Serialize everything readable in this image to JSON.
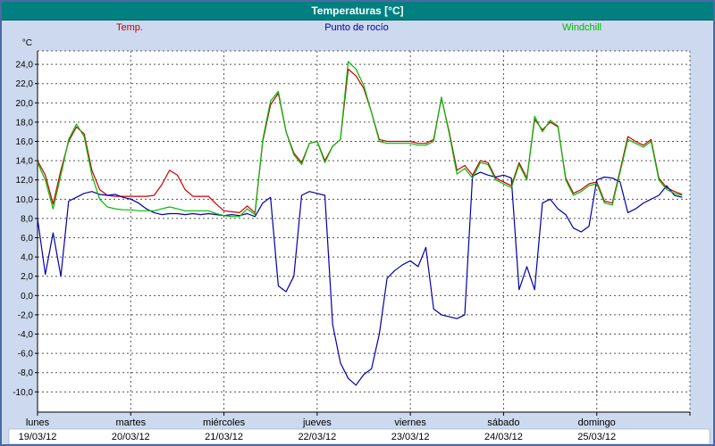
{
  "window": {
    "title": "Temperaturas [°C]"
  },
  "chart_data": {
    "type": "line",
    "title": "Temperaturas [°C]",
    "ylabel": "°C",
    "ylim": [
      -12.1,
      25.4
    ],
    "y_tick_step": 2,
    "y_ticks": [
      "24,0",
      "22,0",
      "20,0",
      "18,0",
      "16,0",
      "14,0",
      "12,0",
      "10,0",
      "8,0",
      "6,0",
      "4,0",
      "2,0",
      "0,0",
      "-2,0",
      "-4,0",
      "-6,0",
      "-8,0",
      "-10,0"
    ],
    "grid": "dashed",
    "legend_position": "top",
    "hours_per_point": 2,
    "total_hours": 168,
    "x_days": [
      {
        "name": "lunes",
        "date": "19/03/12"
      },
      {
        "name": "martes",
        "date": "20/03/12"
      },
      {
        "name": "miércoles",
        "date": "21/03/12"
      },
      {
        "name": "jueves",
        "date": "22/03/12"
      },
      {
        "name": "viernes",
        "date": "23/03/12"
      },
      {
        "name": "sábado",
        "date": "24/03/12"
      },
      {
        "name": "domingo",
        "date": "25/03/12"
      }
    ],
    "series": [
      {
        "name": "Temp.",
        "color": "#cc0000",
        "values": [
          14.0,
          12.5,
          9.5,
          13.0,
          16.0,
          17.5,
          16.8,
          13.0,
          11.0,
          10.4,
          10.3,
          10.3,
          10.3,
          10.3,
          10.3,
          10.4,
          11.5,
          13.0,
          12.5,
          11.0,
          10.3,
          10.3,
          10.3,
          9.5,
          8.8,
          8.7,
          8.6,
          9.3,
          8.6,
          16.0,
          19.8,
          21.0,
          17.0,
          14.8,
          13.8,
          15.8,
          16.0,
          14.0,
          15.5,
          16.2,
          23.5,
          22.8,
          21.5,
          19.0,
          16.2,
          16.0,
          16.0,
          16.0,
          16.0,
          15.8,
          15.8,
          16.2,
          20.5,
          17.0,
          13.0,
          13.5,
          12.5,
          14.0,
          13.8,
          12.2,
          11.8,
          11.4,
          13.8,
          12.2,
          18.3,
          17.2,
          18.0,
          17.5,
          12.2,
          10.6,
          11.0,
          11.6,
          11.8,
          9.8,
          9.6,
          13.0,
          16.5,
          16.0,
          15.6,
          16.2,
          12.2,
          11.2,
          10.8,
          10.5
        ]
      },
      {
        "name": "Punto de rocío",
        "color": "#0000aa",
        "values": [
          8.0,
          2.2,
          6.5,
          2.0,
          9.8,
          10.2,
          10.6,
          10.8,
          10.5,
          10.4,
          10.5,
          10.2,
          10.0,
          9.6,
          9.0,
          8.6,
          8.4,
          8.5,
          8.5,
          8.4,
          8.5,
          8.4,
          8.5,
          8.4,
          8.3,
          8.4,
          8.3,
          8.5,
          8.2,
          9.6,
          10.2,
          1.0,
          0.4,
          2.0,
          10.4,
          10.8,
          10.6,
          10.4,
          -3.0,
          -7.0,
          -8.6,
          -9.3,
          -8.2,
          -7.6,
          -4.0,
          1.8,
          2.6,
          3.2,
          3.6,
          3.0,
          5.0,
          -1.4,
          -2.0,
          -2.2,
          -2.4,
          -2.0,
          12.4,
          12.8,
          12.5,
          12.3,
          12.5,
          12.2,
          0.6,
          3.0,
          0.6,
          9.6,
          10.0,
          9.0,
          8.4,
          7.0,
          6.6,
          7.2,
          12.0,
          12.3,
          12.2,
          11.8,
          8.6,
          9.0,
          9.6,
          10.0,
          10.4,
          11.4,
          10.4,
          10.2
        ]
      },
      {
        "name": "Windchill",
        "color": "#00bb00",
        "values": [
          13.8,
          12.0,
          9.0,
          12.5,
          16.2,
          17.8,
          16.5,
          12.5,
          10.0,
          9.2,
          9.0,
          8.9,
          8.9,
          8.8,
          8.8,
          8.8,
          9.0,
          9.2,
          9.0,
          8.8,
          8.8,
          8.8,
          8.8,
          8.5,
          8.3,
          8.2,
          8.2,
          9.0,
          8.4,
          16.2,
          20.2,
          21.2,
          17.0,
          14.6,
          13.6,
          15.8,
          16.0,
          13.8,
          15.5,
          16.2,
          24.3,
          23.5,
          21.8,
          19.0,
          16.0,
          15.8,
          15.8,
          15.8,
          15.8,
          15.6,
          15.6,
          16.0,
          20.6,
          16.8,
          12.6,
          13.2,
          12.2,
          13.8,
          13.6,
          12.0,
          11.6,
          11.2,
          13.6,
          12.0,
          18.6,
          17.0,
          18.2,
          17.6,
          12.0,
          10.4,
          10.8,
          11.4,
          11.6,
          9.6,
          9.4,
          12.8,
          16.2,
          15.8,
          15.4,
          16.0,
          12.0,
          11.0,
          10.6,
          10.4
        ]
      }
    ]
  }
}
